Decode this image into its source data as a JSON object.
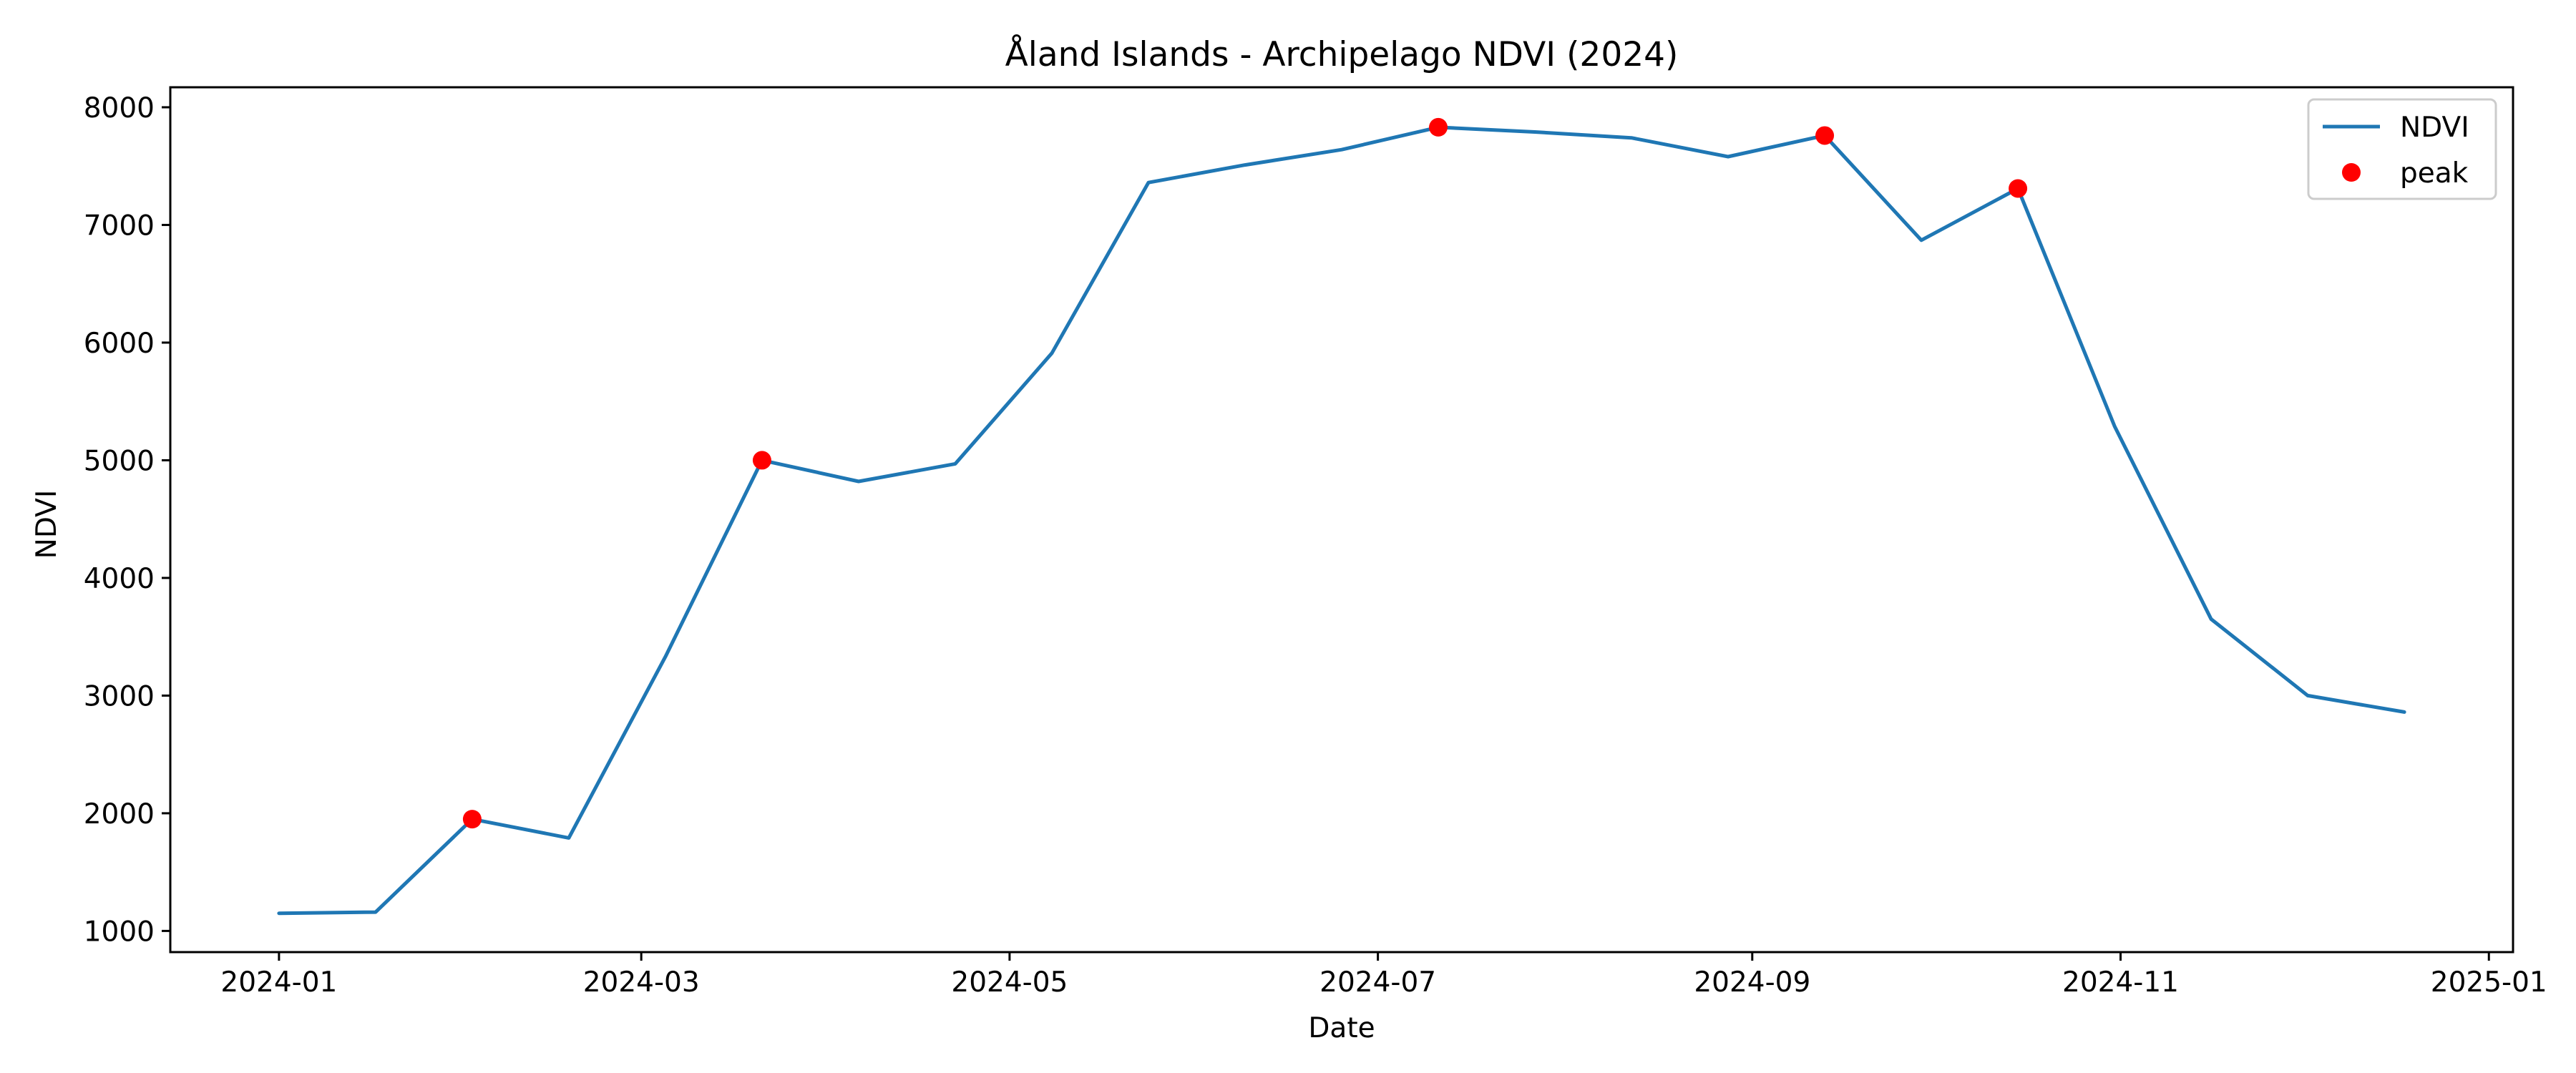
{
  "chart_data": {
    "type": "line",
    "title": "Åland Islands - Archipelago NDVI (2024)",
    "xlabel": "Date",
    "ylabel": "NDVI",
    "xlim": [
      "2023-12-14",
      "2025-01-05"
    ],
    "ylim": [
      820,
      8170
    ],
    "x_ticks": [
      "2024-01-01",
      "2024-03-01",
      "2024-05-01",
      "2024-07-01",
      "2024-09-01",
      "2024-11-01",
      "2025-01-01"
    ],
    "x_tick_labels": [
      "2024-01",
      "2024-03",
      "2024-05",
      "2024-07",
      "2024-09",
      "2024-11",
      "2025-01"
    ],
    "y_ticks": [
      1000,
      2000,
      3000,
      4000,
      5000,
      6000,
      7000,
      8000
    ],
    "y_tick_labels": [
      "1000",
      "2000",
      "3000",
      "4000",
      "5000",
      "6000",
      "7000",
      "8000"
    ],
    "grid": false,
    "legend": {
      "position": "top-right",
      "entries": [
        "NDVI",
        "peak"
      ]
    },
    "series": [
      {
        "name": "NDVI",
        "style": "line",
        "color": "#1f77b4",
        "x": [
          "2024-01-01",
          "2024-01-17",
          "2024-02-02",
          "2024-02-18",
          "2024-03-05",
          "2024-03-21",
          "2024-04-06",
          "2024-04-22",
          "2024-05-08",
          "2024-05-24",
          "2024-06-09",
          "2024-06-25",
          "2024-07-11",
          "2024-07-27",
          "2024-08-12",
          "2024-08-28",
          "2024-09-13",
          "2024-09-29",
          "2024-10-15",
          "2024-10-31",
          "2024-11-16",
          "2024-12-02",
          "2024-12-18"
        ],
        "y": [
          1150,
          1160,
          1950,
          1790,
          3330,
          5000,
          4820,
          4970,
          5910,
          7360,
          7510,
          7640,
          7830,
          7790,
          7740,
          7580,
          7760,
          6870,
          7310,
          5290,
          3650,
          3000,
          2860
        ]
      },
      {
        "name": "peak",
        "style": "markers",
        "color": "#ff0000",
        "x": [
          "2024-02-02",
          "2024-03-21",
          "2024-07-11",
          "2024-09-13",
          "2024-10-15"
        ],
        "y": [
          1950,
          5000,
          7830,
          7760,
          7310
        ]
      }
    ]
  }
}
